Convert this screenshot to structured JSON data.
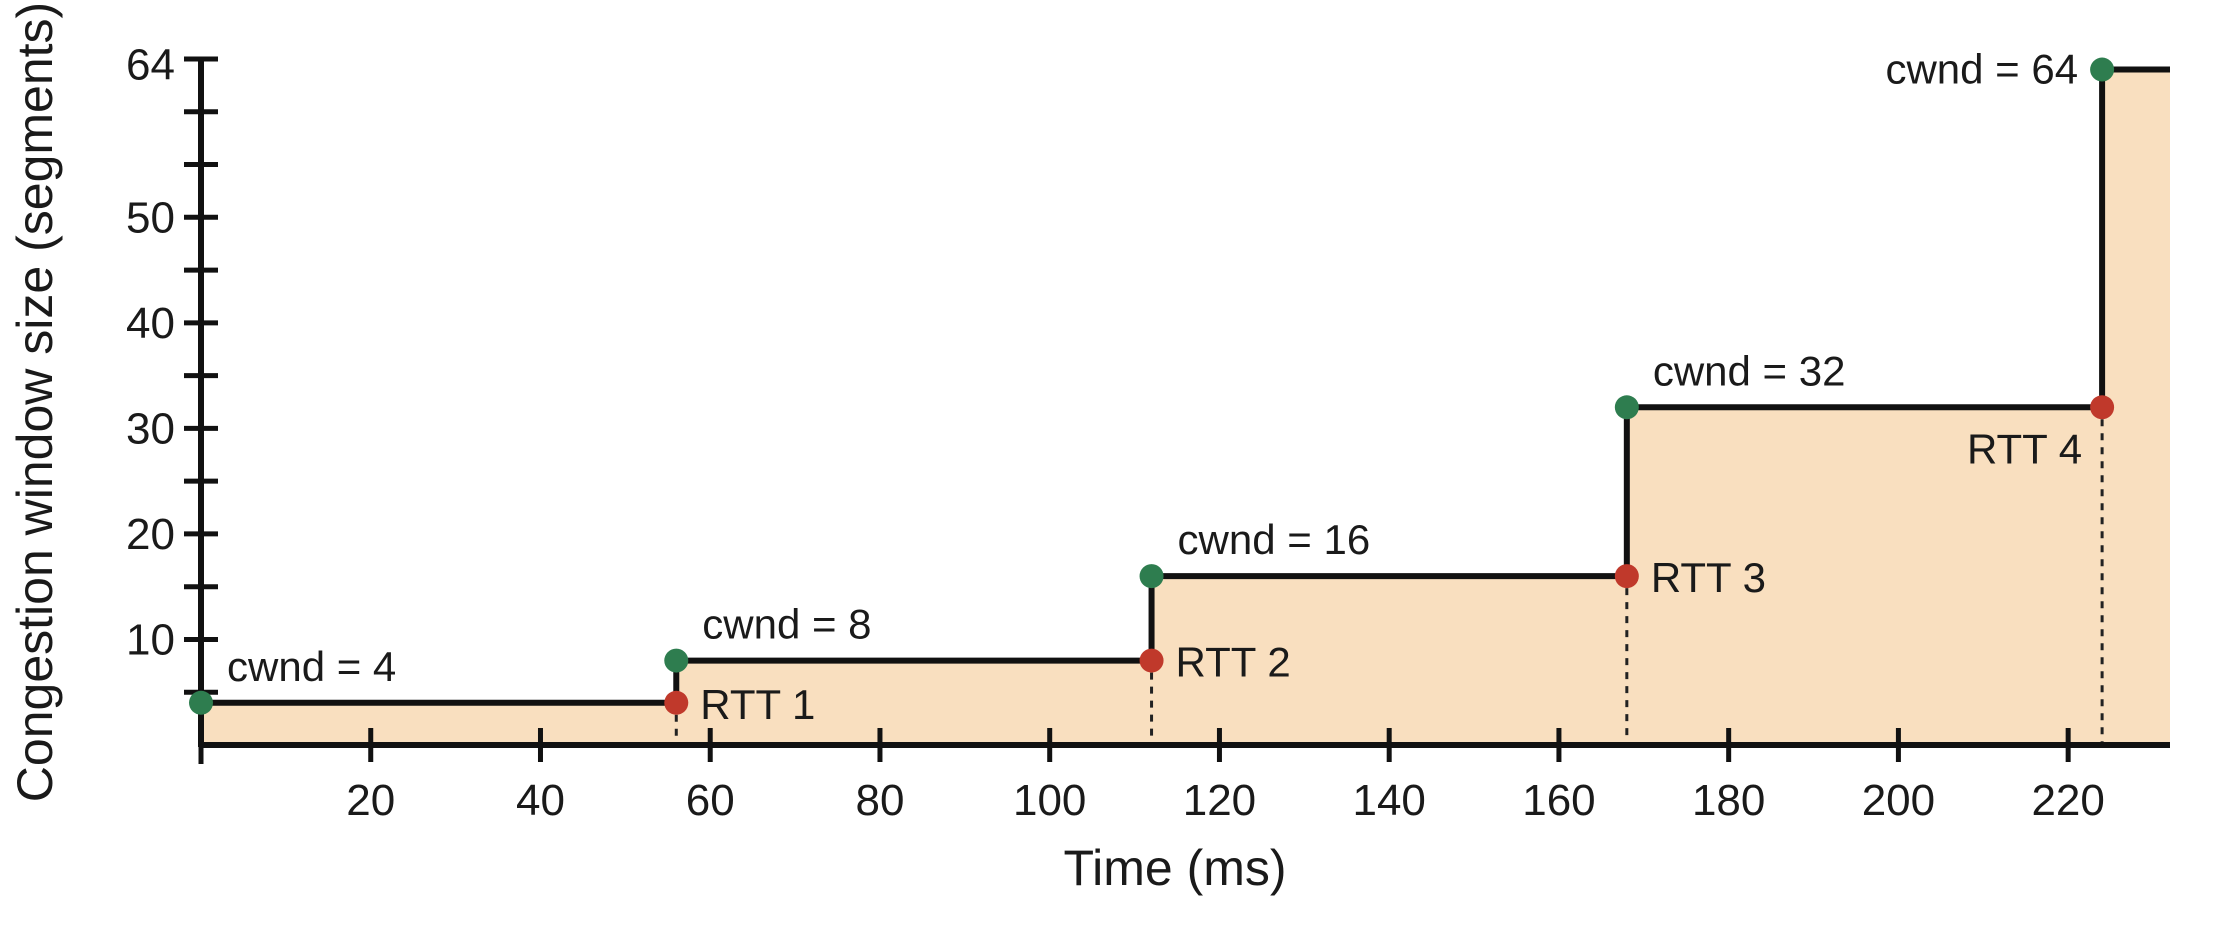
{
  "chart_data": {
    "type": "line",
    "xlabel": "Time (ms)",
    "ylabel": "Congestion window size (segments)",
    "xlim": [
      0,
      232
    ],
    "ylim": [
      0,
      65
    ],
    "x_ticks": [
      20,
      40,
      60,
      80,
      100,
      120,
      140,
      160,
      180,
      200,
      220
    ],
    "y_tick_labels": [
      10,
      20,
      30,
      40,
      50,
      64
    ],
    "y_minor_ticks": [
      5,
      10,
      15,
      20,
      25,
      30,
      35,
      40,
      45,
      50,
      55,
      60,
      65
    ],
    "grid": false,
    "colors": {
      "fill": "#f9dfbf",
      "line": "#111111",
      "start_marker": "#2e7d4f",
      "rtt_marker": "#c0392b"
    },
    "series": [
      {
        "x": [
          0,
          56,
          56,
          112,
          112,
          168,
          168,
          224,
          224,
          232
        ],
        "y": [
          4,
          4,
          8,
          8,
          16,
          16,
          32,
          32,
          64,
          64
        ]
      }
    ],
    "start_points": [
      {
        "x": 0,
        "y": 4,
        "label": "cwnd = 4"
      },
      {
        "x": 56,
        "y": 8,
        "label": "cwnd = 8"
      },
      {
        "x": 112,
        "y": 16,
        "label": "cwnd = 16"
      },
      {
        "x": 168,
        "y": 32,
        "label": "cwnd = 32"
      },
      {
        "x": 224,
        "y": 64,
        "label": "cwnd = 64"
      }
    ],
    "rtt_points": [
      {
        "x": 56,
        "y": 4,
        "label": "RTT 1"
      },
      {
        "x": 112,
        "y": 8,
        "label": "RTT 2"
      },
      {
        "x": 168,
        "y": 16,
        "label": "RTT 3"
      },
      {
        "x": 224,
        "y": 32,
        "label": "RTT 4"
      }
    ]
  }
}
